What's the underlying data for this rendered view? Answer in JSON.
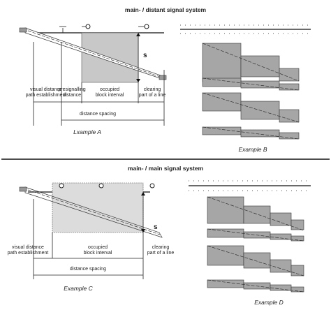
{
  "sections": [
    {
      "title": "main- / distant signal system",
      "s_label": "s",
      "labels": [
        [
          "visual distance",
          "path establishment"
        ],
        [
          "presignalling",
          "distance"
        ],
        [
          "occupied",
          "block interval"
        ],
        [
          "clearing",
          "part of a line"
        ]
      ],
      "spacing": "distance spacing",
      "caption_left": "Lxample A",
      "caption_right": "Example B"
    },
    {
      "title": "main- / main signal system",
      "s_label": "s",
      "labels": [
        [
          "visual distance",
          "path establishment"
        ],
        [
          "occupied",
          "block interval"
        ],
        [
          "clearing",
          "part of a line"
        ]
      ],
      "spacing": "distance spacing",
      "caption_left": "Example C",
      "caption_right": "Example D"
    }
  ]
}
